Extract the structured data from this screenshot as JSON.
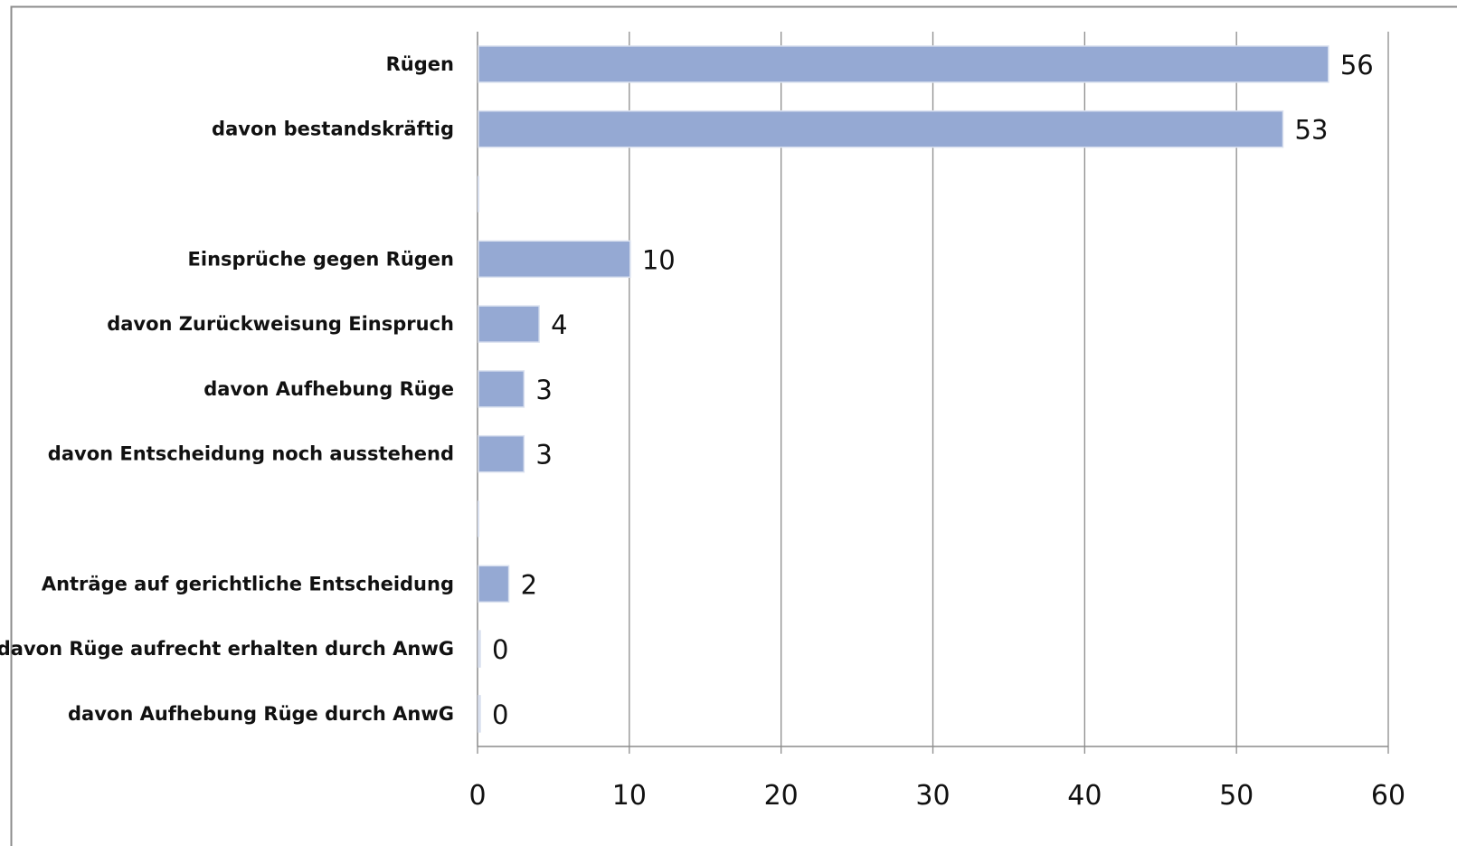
{
  "chart_data": {
    "type": "bar",
    "orientation": "horizontal",
    "categories": [
      "Rügen",
      "davon bestandskräftig",
      "",
      "Einsprüche gegen Rügen",
      "davon Zurückweisung Einspruch",
      "davon Aufhebung Rüge",
      "davon Entscheidung noch ausstehend",
      "",
      "Anträge auf gerichtliche Entscheidung",
      "davon Rüge aufrecht erhalten durch AnwG",
      "davon Aufhebung Rüge durch AnwG"
    ],
    "values": [
      56,
      53,
      null,
      10,
      4,
      3,
      3,
      null,
      2,
      0,
      0
    ],
    "value_labels": [
      "56",
      "53",
      "",
      "10",
      "4",
      "3",
      "3",
      "",
      "2",
      "0",
      "0"
    ],
    "xlim": [
      0,
      60
    ],
    "xticks": [
      0,
      10,
      20,
      30,
      40,
      50,
      60
    ],
    "xtick_labels": [
      "0",
      "10",
      "20",
      "30",
      "40",
      "50",
      "60"
    ],
    "grid": "vertical",
    "legend": "none",
    "bar_color": "#95a9d3",
    "bar_edge_color": "#d9e0ef",
    "grid_color": "#8c8c8c",
    "axis_color": "#8c8c8c",
    "frame_color": "#8c8c8c",
    "text_color": "#111111"
  }
}
